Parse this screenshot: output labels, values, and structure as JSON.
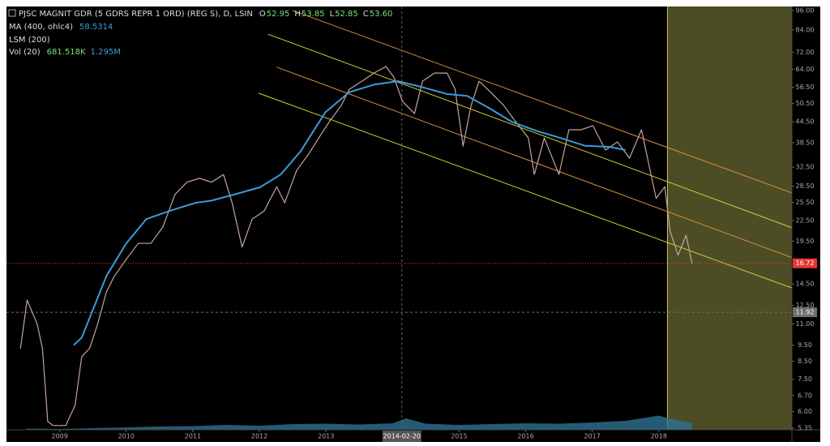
{
  "chart_data": {
    "type": "line",
    "title": "PJSC MAGNIT GDR (5 GDRS REPR 1 ORD) (REG S), D, LSIN",
    "ohlc": [
      [
        "O",
        "52.95"
      ],
      [
        "H",
        "53.85"
      ],
      [
        "L",
        "52.85"
      ],
      [
        "C",
        "53.60"
      ]
    ],
    "log": true,
    "xlim": [
      2008.2,
      2020.0
    ],
    "xticks": [
      2009,
      2010,
      2011,
      2012,
      2013,
      2015,
      2016,
      2017,
      2018
    ],
    "ylim": [
      5.35,
      96
    ],
    "yticks": [
      {
        "value": 96,
        "label": "96.00"
      },
      {
        "value": 84,
        "label": "84.00"
      },
      {
        "value": 72,
        "label": "72.00"
      },
      {
        "value": 64,
        "label": "64.00"
      },
      {
        "value": 56.5,
        "label": "56.50"
      },
      {
        "value": 50.5,
        "label": "50.50"
      },
      {
        "value": 44.5,
        "label": "44.50"
      },
      {
        "value": 38.5,
        "label": "38.50"
      },
      {
        "value": 32.5,
        "label": "32.50"
      },
      {
        "value": 28.5,
        "label": "28.50"
      },
      {
        "value": 25.5,
        "label": "25.50"
      },
      {
        "value": 22.5,
        "label": "22.50"
      },
      {
        "value": 19.5,
        "label": "19.50"
      },
      {
        "value": 14.5,
        "label": "14.50"
      },
      {
        "value": 12.5,
        "label": "12.50"
      },
      {
        "value": 11,
        "label": "11.00"
      },
      {
        "value": 9.5,
        "label": "9.50"
      },
      {
        "value": 8.5,
        "label": "8.50"
      },
      {
        "value": 7.5,
        "label": "7.50"
      },
      {
        "value": 6.7,
        "label": "6.70"
      },
      {
        "value": 6,
        "label": "6.00"
      },
      {
        "value": 5.35,
        "label": "5.35"
      }
    ],
    "series": [
      {
        "color": "#c9a3a3",
        "x": [
          2008.41,
          2008.51,
          2008.66,
          2008.74,
          2008.82,
          2008.9,
          2009.09,
          2009.23,
          2009.33,
          2009.45,
          2009.57,
          2009.7,
          2009.82,
          2010.0,
          2010.18,
          2010.37,
          2010.55,
          2010.73,
          2010.91,
          2011.1,
          2011.28,
          2011.46,
          2011.59,
          2011.74,
          2011.89,
          2012.07,
          2012.26,
          2012.38,
          2012.56,
          2012.74,
          2012.93,
          2013.05,
          2013.23,
          2013.35,
          2013.54,
          2013.72,
          2013.9,
          2014.02,
          2014.15,
          2014.33,
          2014.45,
          2014.63,
          2014.82,
          2014.94,
          2015.06,
          2015.18,
          2015.3,
          2015.49,
          2015.67,
          2015.85,
          2016.04,
          2016.13,
          2016.28,
          2016.5,
          2016.65,
          2016.83,
          2017.01,
          2017.2,
          2017.38,
          2017.56,
          2017.74,
          2017.87,
          2017.96,
          2018.09,
          2018.17,
          2018.29,
          2018.41,
          2018.5
        ],
        "values": [
          9.27,
          12.97,
          11,
          9.3,
          5.6,
          5.45,
          5.45,
          6.26,
          8.76,
          9.3,
          11,
          13.7,
          15.3,
          17.2,
          19.2,
          19.2,
          21.5,
          26.9,
          29.3,
          30.1,
          29.3,
          30.9,
          25.4,
          18.7,
          22.7,
          24,
          28.4,
          25.4,
          31.8,
          35.6,
          40.9,
          44.5,
          49.8,
          55.7,
          58.9,
          62.3,
          65.2,
          60.6,
          51.2,
          47.1,
          58.9,
          62.3,
          62.3,
          55.7,
          37.6,
          49.8,
          58.9,
          54.2,
          49.8,
          44.5,
          39.8,
          30.9,
          39.8,
          30.9,
          42.1,
          42.1,
          43.3,
          36.6,
          38.7,
          34.6,
          42.1,
          31.8,
          26.2,
          28.4,
          20.9,
          17.7,
          20.3,
          16.72
        ]
      },
      {
        "name": "MA (400, ohlc4)",
        "readout": "58.5314",
        "color": "#3a9bdc",
        "x": [
          2009.21,
          2009.33,
          2009.7,
          2010.0,
          2010.3,
          2010.67,
          2011.04,
          2011.28,
          2011.65,
          2012.01,
          2012.32,
          2012.62,
          2012.99,
          2013.35,
          2013.72,
          2014.08,
          2014.45,
          2014.82,
          2015.12,
          2015.43,
          2015.79,
          2016.16,
          2016.52,
          2016.89,
          2017.26,
          2017.5
        ],
        "values": [
          9.5,
          10,
          15.3,
          19.2,
          22.7,
          24.1,
          25.4,
          25.8,
          27,
          28.3,
          30.9,
          36.3,
          47.5,
          54.6,
          57.5,
          58.9,
          56.5,
          53.9,
          53.2,
          49.2,
          44.5,
          41.8,
          39.8,
          37.7,
          37.4,
          36.6
        ]
      }
    ],
    "channel": {
      "name": "LSM (200)",
      "lines": [
        {
          "color": "#d98c3a",
          "x": [
            2012.5,
            2020.0
          ],
          "values": [
            96,
            27.2
          ]
        },
        {
          "color": "#d8d23a",
          "x": [
            2012.13,
            2020.0
          ],
          "values": [
            81.5,
            21.4
          ]
        },
        {
          "color": "#d98c3a",
          "x": [
            2012.26,
            2020.0
          ],
          "values": [
            64.9,
            17.4
          ]
        },
        {
          "color": "#d8d23a",
          "x": [
            2011.99,
            2020.0
          ],
          "values": [
            54.2,
            14.1
          ]
        }
      ]
    },
    "volume": {
      "name": "Vol (20)",
      "readout": [
        "681.518K",
        "1.295M"
      ],
      "color": "#2c7391",
      "vlim": [
        0,
        8000000
      ],
      "x": [
        2008.5,
        2009.0,
        2009.5,
        2010.0,
        2010.5,
        2011.0,
        2011.5,
        2012.0,
        2012.5,
        2013.0,
        2013.5,
        2014.0,
        2014.2,
        2014.5,
        2015.0,
        2015.5,
        2016.0,
        2016.5,
        2017.0,
        2017.5,
        2018.0,
        2018.2,
        2018.5
      ],
      "values": [
        300000,
        200000,
        400000,
        600000,
        800000,
        900000,
        1200000,
        1000000,
        1400000,
        1500000,
        1300000,
        1600000,
        2800000,
        1500000,
        1200000,
        1400000,
        1600000,
        1500000,
        1800000,
        2200000,
        3500000,
        2600000,
        1700000
      ]
    },
    "price_lines": [
      {
        "value": 16.72,
        "color": "#e53935"
      },
      {
        "value": 11.92,
        "color": "#6f6f6f"
      }
    ],
    "highlight": {
      "x0": 2018.13,
      "x1": 2020.0,
      "color": "#5b5b2c"
    },
    "crosshair": {
      "x": 2014.14,
      "label": "2014-02-20"
    }
  }
}
